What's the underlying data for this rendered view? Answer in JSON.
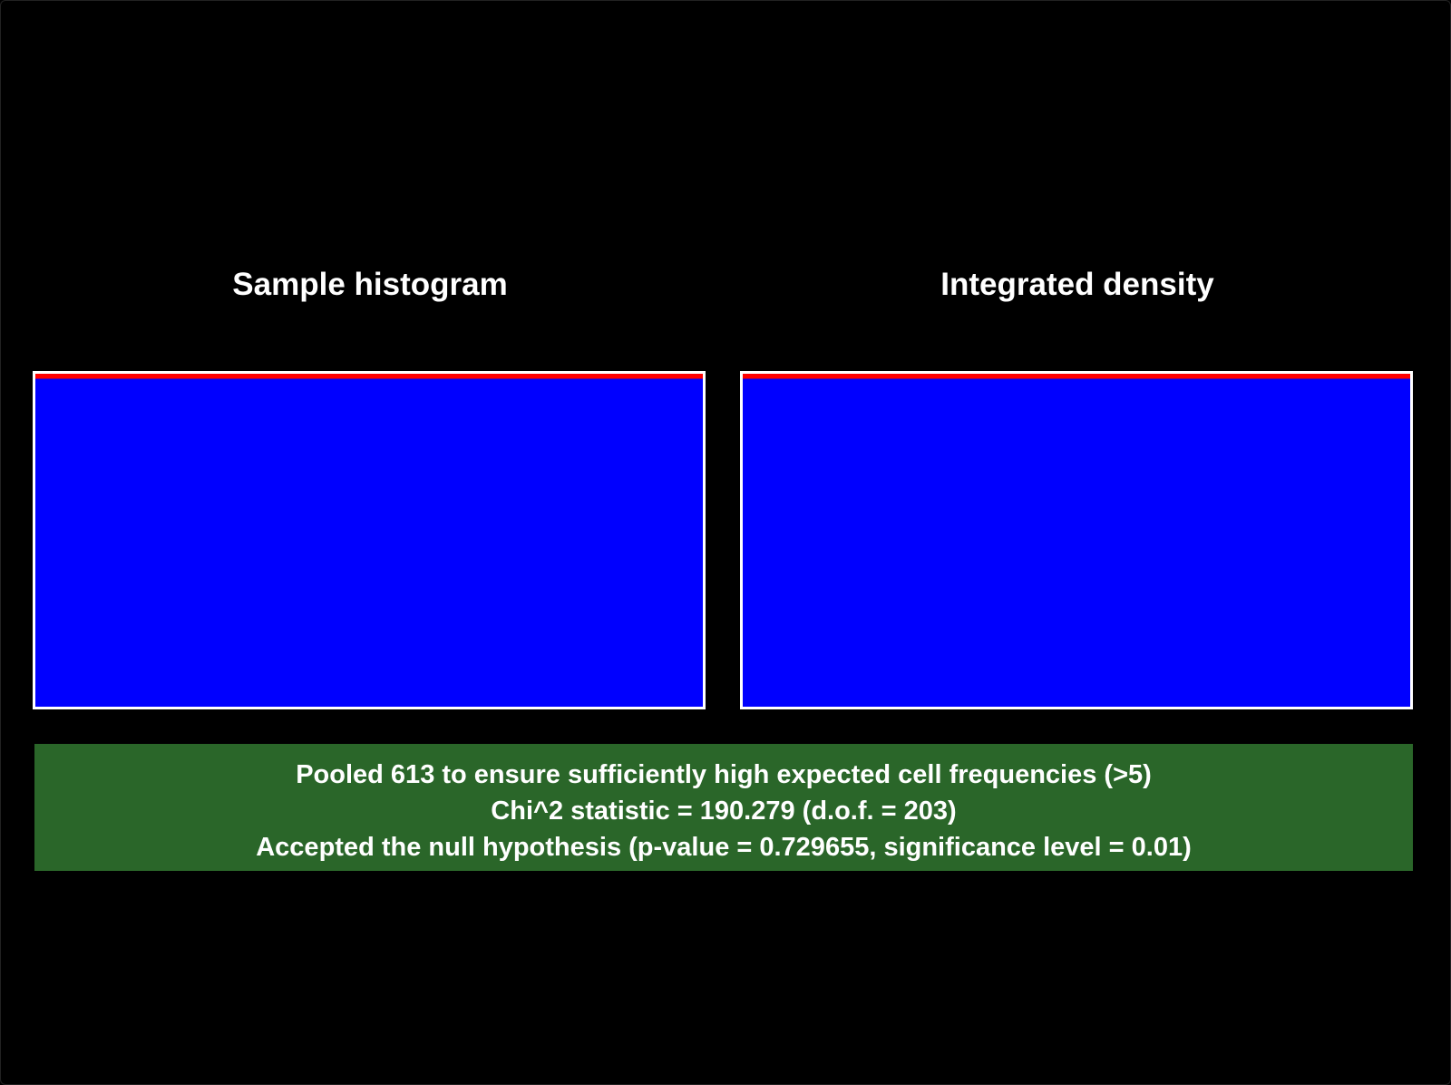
{
  "colors": {
    "background": "#000000",
    "frame": "#ffffff",
    "bar_fill": "#0000ff",
    "density_line": "#ff0000",
    "result_background": "#2a6629",
    "text": "#ffffff"
  },
  "chart_data": [
    {
      "type": "bar",
      "title": "Sample histogram",
      "xlabel": "",
      "ylabel": "",
      "ylim": [
        0,
        1
      ],
      "fill_level": 0.985,
      "series": [
        {
          "values": [
            1
          ]
        }
      ],
      "overlay_line_level": 0.985,
      "grid": false
    },
    {
      "type": "area",
      "title": "Integrated density",
      "xlabel": "",
      "ylabel": "",
      "ylim": [
        0,
        1
      ],
      "fill_level": 0.985,
      "series": [
        {
          "values": [
            1
          ]
        }
      ],
      "overlay_line_level": 0.985,
      "grid": false
    }
  ],
  "result": {
    "lines": [
      "Pooled 613 to ensure sufficiently high expected cell frequencies (>5)",
      "Chi^2 statistic = 190.279 (d.o.f. = 203)",
      "Accepted the null hypothesis (p-value = 0.729655, significance level = 0.01)"
    ],
    "status": "accepted"
  }
}
